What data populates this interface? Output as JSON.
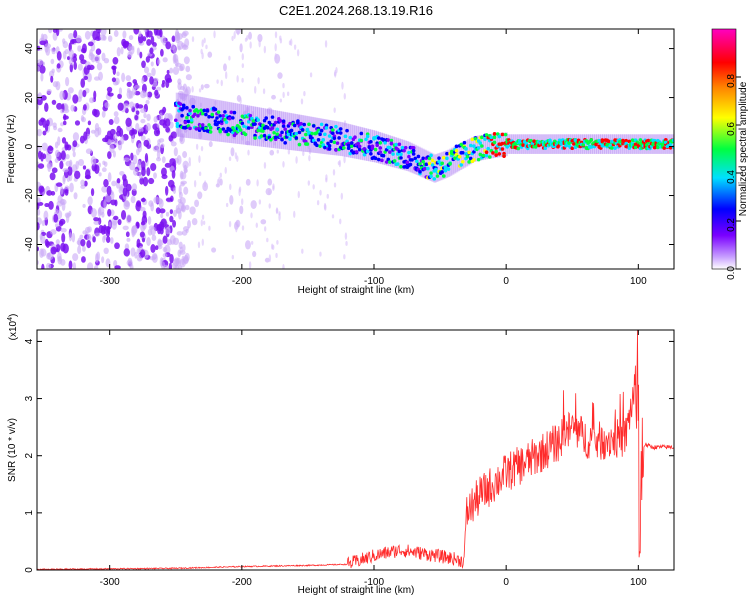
{
  "chart_data": [
    {
      "type": "heatmap",
      "title": "C2E1.2024.268.13.19.R16",
      "xlabel": "Height of straight line (km)",
      "ylabel": "Frequency (Hz)",
      "xlim": [
        -355,
        127
      ],
      "ylim": [
        -50,
        48
      ],
      "x_ticks": [
        -300,
        -200,
        -100,
        0,
        100
      ],
      "y_ticks": [
        -40,
        -20,
        0,
        20,
        40
      ],
      "colorbar": {
        "label": "Normalized spectral amplitude",
        "range": [
          0,
          1
        ],
        "ticks": [
          "0.0",
          "0.2",
          "0.4",
          "0.6",
          "0.8"
        ],
        "colormap": [
          "#ffffff",
          "#7a00ff",
          "#0000ff",
          "#00e0ff",
          "#00ff40",
          "#ffff00",
          "#ff8000",
          "#ff0000",
          "#ff00c0"
        ]
      },
      "ridge": {
        "x": [
          -250,
          -225,
          -200,
          -175,
          -150,
          -125,
          -100,
          -75,
          -55,
          -45,
          -35,
          -25,
          -15,
          0,
          30,
          60,
          90,
          100,
          127
        ],
        "y": [
          13,
          11,
          9,
          7,
          5,
          3,
          0,
          -4,
          -9,
          -7,
          -4,
          -1,
          0,
          1,
          1,
          1,
          1,
          1,
          1
        ]
      },
      "noise_region_x": [
        -355,
        -240
      ]
    },
    {
      "type": "line",
      "title": "",
      "xlabel": "Height of straight line (km)",
      "ylabel": "SNR (10 * v/v)",
      "y_multiplier": "(x10^4)",
      "xlim": [
        -355,
        127
      ],
      "ylim": [
        0,
        4.2
      ],
      "x_ticks": [
        -300,
        -200,
        -100,
        0,
        100
      ],
      "y_ticks": [
        0,
        1,
        2,
        3,
        4
      ],
      "color": "#ff2a2a",
      "series": [
        {
          "x": [
            -355,
            -300,
            -250,
            -200,
            -150,
            -120,
            -100,
            -80,
            -60,
            -40,
            -32,
            -30,
            -20,
            -10,
            0,
            20,
            40,
            50,
            60,
            70,
            80,
            90,
            100,
            101,
            103,
            105,
            110,
            120,
            127
          ],
          "y": [
            0.01,
            0.02,
            0.03,
            0.06,
            0.08,
            0.1,
            0.25,
            0.35,
            0.28,
            0.2,
            0.15,
            1.0,
            1.3,
            1.5,
            1.7,
            1.95,
            2.25,
            2.5,
            2.3,
            2.25,
            2.3,
            2.3,
            3.5,
            0.3,
            2.1,
            2.2,
            2.15,
            2.15,
            2.15
          ]
        }
      ]
    }
  ]
}
